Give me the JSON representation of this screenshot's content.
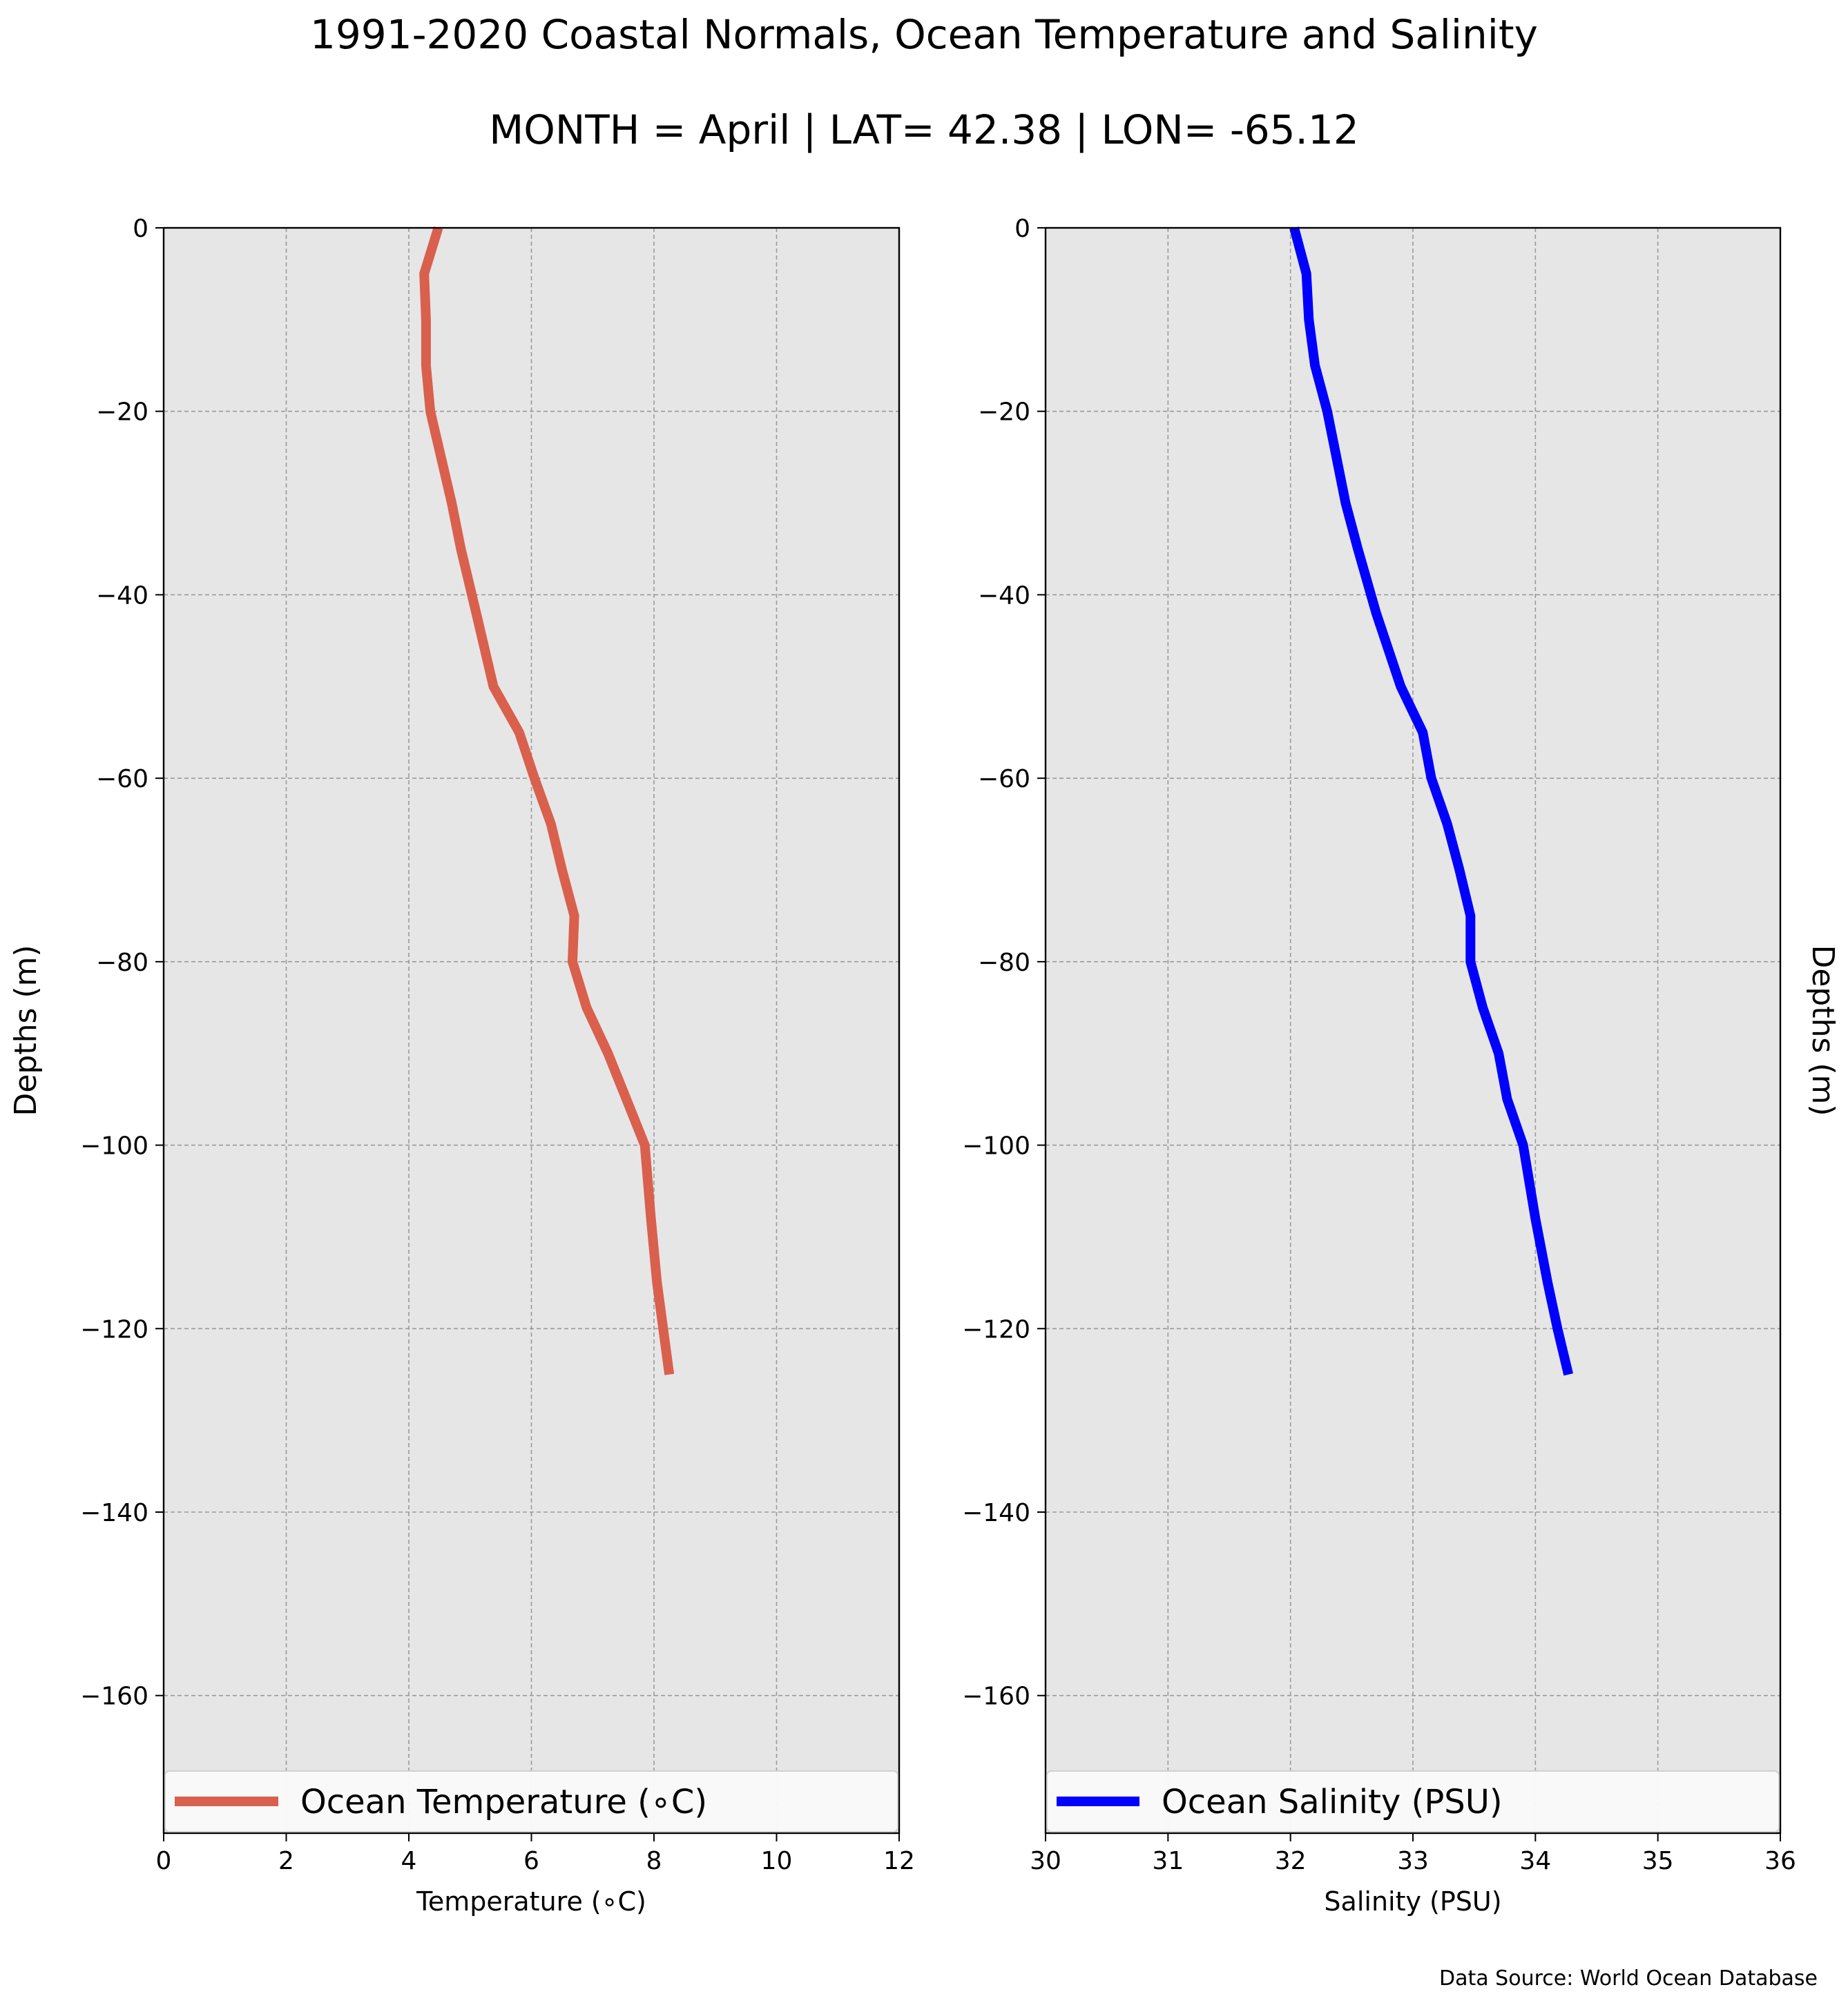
{
  "figure": {
    "title": "1991-2020 Coastal Normals, Ocean Temperature and Salinity",
    "subtitle": "MONTH = April | LAT= 42.38 | LON= -65.12",
    "source": "Data Source: World Ocean Database",
    "background_color": "#e6e6e6"
  },
  "chart_data": [
    {
      "type": "line",
      "xlabel": "Temperature (∘C)",
      "ylabel": "Depths (m)",
      "xlim": [
        0,
        12
      ],
      "ylim": [
        -175,
        0
      ],
      "xticks": [
        0,
        2,
        4,
        6,
        8,
        10,
        12
      ],
      "yticks": [
        0,
        -20,
        -40,
        -60,
        -80,
        -100,
        -120,
        -140,
        -160
      ],
      "ytick_labels": [
        "0",
        "−20",
        "−40",
        "−60",
        "−80",
        "−100",
        "−120",
        "−140",
        "−160"
      ],
      "grid": true,
      "legend_position": "bottom",
      "series": [
        {
          "name": "Ocean Temperature (∘C)",
          "color": "#d9604d",
          "x": [
            4.48,
            4.25,
            4.28,
            4.28,
            4.35,
            4.7,
            4.85,
            5.1,
            5.38,
            5.8,
            6.05,
            6.32,
            6.5,
            6.7,
            6.67,
            6.9,
            7.25,
            7.55,
            7.85,
            7.95,
            8.05,
            8.15,
            8.25
          ],
          "y": [
            0,
            -5,
            -10,
            -15,
            -20,
            -30,
            -35,
            -42,
            -50,
            -55,
            -60,
            -65,
            -70,
            -75,
            -80,
            -85,
            -90,
            -95,
            -100,
            -108,
            -115,
            -120,
            -125
          ]
        }
      ]
    },
    {
      "type": "line",
      "xlabel": "Salinity (PSU)",
      "ylabel": "Depths (m)",
      "xlim": [
        30,
        36
      ],
      "ylim": [
        -175,
        0
      ],
      "xticks": [
        30,
        31,
        32,
        33,
        34,
        35,
        36
      ],
      "yticks": [
        0,
        -20,
        -40,
        -60,
        -80,
        -100,
        -120,
        -140,
        -160
      ],
      "ytick_labels": [
        "0",
        "−20",
        "−40",
        "−60",
        "−80",
        "−100",
        "−120",
        "−140",
        "−160"
      ],
      "grid": true,
      "legend_position": "bottom",
      "series": [
        {
          "name": "Ocean Salinity (PSU)",
          "color": "#0000ff",
          "x": [
            32.03,
            32.13,
            32.15,
            32.2,
            32.3,
            32.45,
            32.55,
            32.7,
            32.9,
            33.08,
            33.15,
            33.28,
            33.38,
            33.47,
            33.47,
            33.57,
            33.7,
            33.77,
            33.9,
            34.0,
            34.1,
            34.18,
            34.27
          ],
          "y": [
            0,
            -5,
            -10,
            -15,
            -20,
            -30,
            -35,
            -42,
            -50,
            -55,
            -60,
            -65,
            -70,
            -75,
            -80,
            -85,
            -90,
            -95,
            -100,
            -108,
            -115,
            -120,
            -125
          ]
        }
      ]
    }
  ]
}
